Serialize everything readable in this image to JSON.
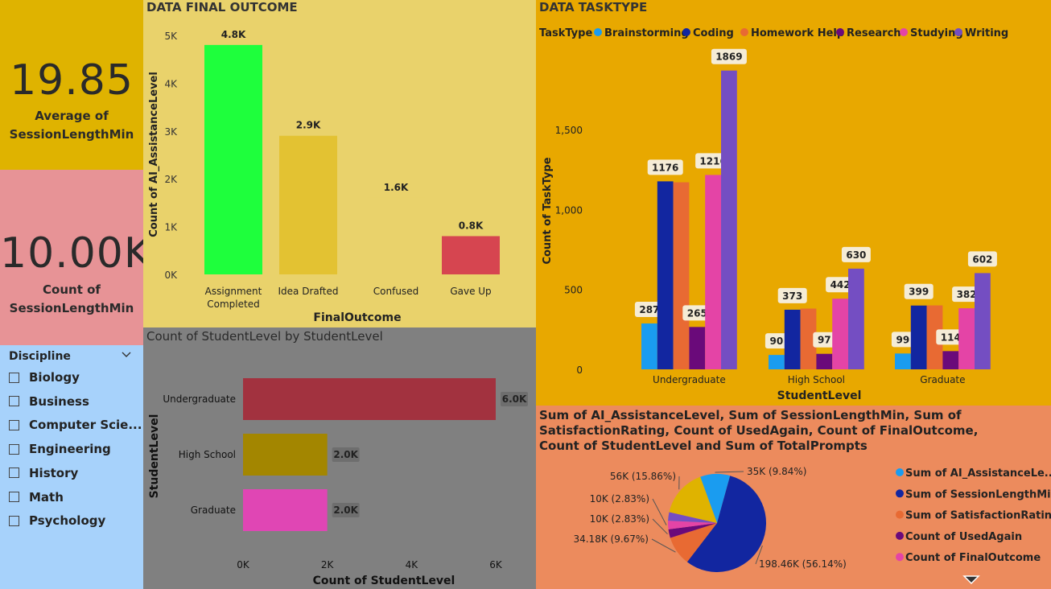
{
  "kpis": [
    {
      "value": "19.85",
      "label_line1": "Average of",
      "label_line2": "SessionLengthMin"
    },
    {
      "value": "10.00K",
      "label_line1": "Count of",
      "label_line2": "SessionLengthMin"
    }
  ],
  "slicer": {
    "title": "Discipline",
    "items": [
      "Biology",
      "Business",
      "Computer Scie...",
      "Engineering",
      "History",
      "Math",
      "Psychology"
    ]
  },
  "chart_data": [
    {
      "type": "bar",
      "title": "DATA FINAL OUTCOME",
      "xlabel": "FinalOutcome",
      "ylabel": "Count of AI_AssistanceLevel",
      "categories": [
        "Assignment Completed",
        "Idea Drafted",
        "Confused",
        "Gave Up"
      ],
      "values": [
        4800,
        2900,
        1600,
        800
      ],
      "data_labels": [
        "4.8K",
        "2.9K",
        "1.6K",
        "0.8K"
      ],
      "colors": [
        "#1eff3c",
        "#e3c232",
        "#e9d26b",
        "#d64550"
      ],
      "yticks": [
        "0K",
        "1K",
        "2K",
        "3K",
        "4K",
        "5K"
      ],
      "ylim": [
        0,
        5000
      ]
    },
    {
      "type": "bar",
      "orientation": "horizontal",
      "title": "Count of StudentLevel by StudentLevel",
      "xlabel": "Count of StudentLevel",
      "ylabel": "StudentLevel",
      "categories": [
        "Undergraduate",
        "High School",
        "Graduate"
      ],
      "values": [
        6000,
        2000,
        2000
      ],
      "data_labels": [
        "6.0K",
        "2.0K",
        "2.0K"
      ],
      "colors": [
        "#a2323f",
        "#a38600",
        "#e046b4"
      ],
      "xticks": [
        "0K",
        "2K",
        "4K",
        "6K"
      ],
      "xlim": [
        0,
        6000
      ]
    },
    {
      "type": "bar",
      "title": "DATA TASKTYPE",
      "legend_title": "TaskType",
      "xlabel": "StudentLevel",
      "ylabel": "Count of TaskType",
      "categories": [
        "Undergraduate",
        "High School",
        "Graduate"
      ],
      "series": [
        {
          "name": "Brainstorming",
          "color": "#1a9cf0",
          "values": [
            287,
            90,
            99
          ],
          "labels": [
            "287",
            "90",
            "99"
          ]
        },
        {
          "name": "Coding",
          "color": "#1226a0",
          "values": [
            1176,
            373,
            399
          ],
          "labels": [
            "1176",
            "373",
            "399"
          ]
        },
        {
          "name": "Homework Help",
          "color": "#e86a33",
          "values": [
            1170,
            380,
            400
          ],
          "labels": [
            "",
            "",
            ""
          ]
        },
        {
          "name": "Research",
          "color": "#6a0a7a",
          "values": [
            265,
            97,
            114
          ],
          "labels": [
            "265",
            "97",
            "114"
          ]
        },
        {
          "name": "Studying",
          "color": "#e444a6",
          "values": [
            1216,
            442,
            382
          ],
          "labels": [
            "1216",
            "442",
            "382"
          ]
        },
        {
          "name": "Writing",
          "color": "#744ec2",
          "values": [
            1869,
            630,
            602
          ],
          "labels": [
            "1869",
            "630",
            "602"
          ]
        }
      ],
      "yticks": [
        "0",
        "500",
        "1,000",
        "1,500"
      ],
      "ylim": [
        0,
        1960
      ]
    },
    {
      "type": "pie",
      "title_lines": [
        "Sum of AI_AssistanceLevel, Sum of SessionLengthMin, Sum of",
        "SatisfactionRating, Count of UsedAgain, Count of FinalOutcome,",
        "Count of StudentLevel and Sum of TotalPrompts"
      ],
      "slices": [
        {
          "name": "Sum of AI_AssistanceLe...",
          "value": 9.84,
          "label": "35K (9.84%)",
          "color": "#1a9cf0"
        },
        {
          "name": "Sum of SessionLengthMin",
          "value": 56.14,
          "label": "198.46K (56.14%)",
          "color": "#1226a0"
        },
        {
          "name": "Sum of SatisfactionRating",
          "value": 9.67,
          "label": "34.18K (9.67%)",
          "color": "#e86a33"
        },
        {
          "name": "Count of UsedAgain",
          "value": 2.83,
          "label": "10K (2.83%)",
          "color": "#6a0a7a"
        },
        {
          "name": "Count of FinalOutcome",
          "value": 2.83,
          "label": "10K (2.83%)",
          "color": "#e444a6"
        },
        {
          "name": "",
          "value": 2.83,
          "label": "",
          "color": "#744ec2"
        },
        {
          "name": "",
          "value": 15.86,
          "label": "56K (15.86%)",
          "color": "#dfb300"
        }
      ]
    }
  ]
}
